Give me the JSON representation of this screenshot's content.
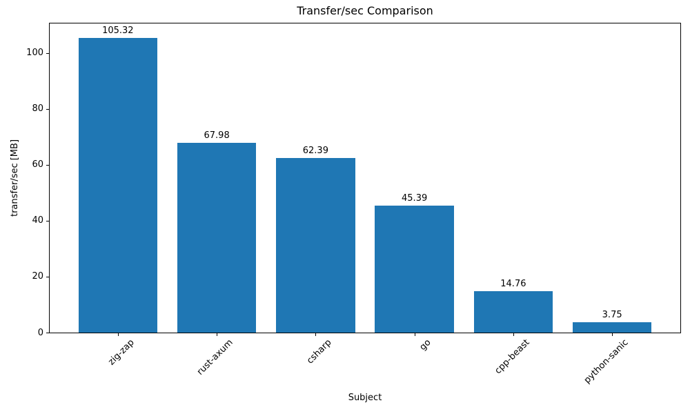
{
  "chart_data": {
    "type": "bar",
    "title": "Transfer/sec Comparison",
    "xlabel": "Subject",
    "ylabel": "transfer/sec [MB]",
    "categories": [
      "zig-zap",
      "rust-axum",
      "csharp",
      "go",
      "cpp-beast",
      "python-sanic"
    ],
    "values": [
      105.32,
      67.98,
      62.39,
      45.39,
      14.76,
      3.75
    ],
    "value_labels": [
      "105.32",
      "67.98",
      "62.39",
      "45.39",
      "14.76",
      "3.75"
    ],
    "yticks": [
      0,
      20,
      40,
      60,
      80,
      100
    ],
    "ytick_labels": [
      "0",
      "20",
      "40",
      "60",
      "80",
      "100"
    ],
    "ylim": [
      0,
      110.59
    ],
    "xlim": [
      -0.69,
      5.69
    ],
    "bar_width_units": 0.8,
    "bar_color": "#1f77b4",
    "text_color": "#000000",
    "grid": false,
    "legend_position": "none"
  }
}
